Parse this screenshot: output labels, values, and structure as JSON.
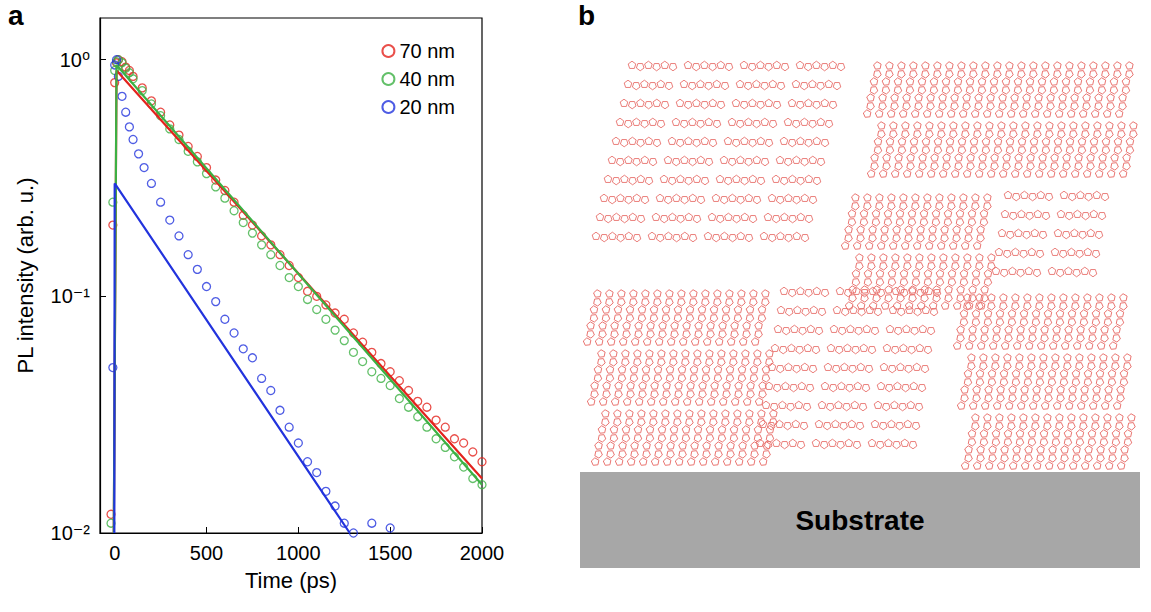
{
  "chart_data": {
    "type": "scatter",
    "panel_label": "a",
    "x_label": "Time (ps)",
    "y_label": "PL intensity (arb. u.)",
    "xlim": [
      -80,
      2000
    ],
    "xticks": [
      0,
      500,
      1000,
      1500,
      2000
    ],
    "ylim": [
      0.01,
      1.5
    ],
    "yticks": [
      {
        "value": 0.01,
        "label": "10⁻²"
      },
      {
        "value": 0.1,
        "label": "10⁻¹"
      },
      {
        "value": 1,
        "label": "10⁰"
      }
    ],
    "log": "y",
    "grid": false,
    "legend": "upper right",
    "series": [
      {
        "name": "70 nm",
        "color": "#e3231d",
        "marker": "circle-open",
        "x": [
          -20,
          -10,
          0,
          10,
          20,
          40,
          60,
          80,
          100,
          150,
          200,
          250,
          300,
          350,
          400,
          450,
          500,
          550,
          600,
          650,
          700,
          750,
          800,
          850,
          900,
          950,
          1000,
          1050,
          1100,
          1150,
          1200,
          1250,
          1300,
          1350,
          1400,
          1450,
          1500,
          1550,
          1600,
          1650,
          1700,
          1750,
          1800,
          1850,
          1900,
          1950,
          2000
        ],
        "values": [
          0.012,
          0.2,
          0.8,
          0.97,
          1.0,
          0.98,
          0.93,
          0.9,
          0.85,
          0.76,
          0.67,
          0.6,
          0.53,
          0.48,
          0.43,
          0.39,
          0.35,
          0.31,
          0.28,
          0.25,
          0.22,
          0.2,
          0.18,
          0.165,
          0.15,
          0.135,
          0.12,
          0.105,
          0.1,
          0.092,
          0.085,
          0.08,
          0.07,
          0.064,
          0.058,
          0.052,
          0.048,
          0.044,
          0.04,
          0.036,
          0.034,
          0.03,
          0.028,
          0.025,
          0.024,
          0.022,
          0.02
        ],
        "fit": {
          "x": [
            -5,
            10,
            2000
          ],
          "values": [
            0.01,
            0.9,
            0.017
          ]
        }
      },
      {
        "name": "40 nm",
        "color": "#3cb043",
        "marker": "circle-open",
        "x": [
          -20,
          -10,
          0,
          10,
          20,
          40,
          60,
          80,
          100,
          150,
          200,
          250,
          300,
          350,
          400,
          450,
          500,
          550,
          600,
          650,
          700,
          750,
          800,
          850,
          900,
          950,
          1000,
          1050,
          1100,
          1150,
          1200,
          1250,
          1300,
          1350,
          1400,
          1450,
          1500,
          1550,
          1600,
          1650,
          1700,
          1750,
          1800,
          1850,
          1900,
          1950,
          2000
        ],
        "values": [
          0.011,
          0.25,
          0.9,
          0.98,
          1.0,
          0.97,
          0.92,
          0.88,
          0.83,
          0.74,
          0.65,
          0.58,
          0.51,
          0.46,
          0.41,
          0.37,
          0.33,
          0.29,
          0.26,
          0.23,
          0.205,
          0.185,
          0.165,
          0.15,
          0.135,
          0.12,
          0.11,
          0.097,
          0.088,
          0.08,
          0.072,
          0.065,
          0.058,
          0.053,
          0.048,
          0.045,
          0.042,
          0.037,
          0.034,
          0.031,
          0.028,
          0.025,
          0.023,
          0.021,
          0.019,
          0.017,
          0.016
        ],
        "fit": {
          "x": [
            -5,
            10,
            2000
          ],
          "values": [
            0.01,
            0.95,
            0.016
          ]
        }
      },
      {
        "name": "20 nm",
        "color": "#2233dd",
        "marker": "circle-open",
        "x": [
          -10,
          0,
          10,
          20,
          40,
          60,
          80,
          100,
          130,
          160,
          200,
          250,
          300,
          350,
          400,
          450,
          500,
          550,
          600,
          650,
          700,
          750,
          800,
          850,
          900,
          950,
          1000,
          1050,
          1100,
          1150,
          1200,
          1250,
          1300,
          1400,
          1500
        ],
        "values": [
          0.05,
          0.95,
          1.0,
          0.85,
          0.7,
          0.6,
          0.52,
          0.46,
          0.4,
          0.35,
          0.3,
          0.25,
          0.21,
          0.18,
          0.15,
          0.13,
          0.11,
          0.095,
          0.08,
          0.07,
          0.06,
          0.055,
          0.045,
          0.04,
          0.033,
          0.028,
          0.024,
          0.02,
          0.018,
          0.015,
          0.013,
          0.011,
          0.01,
          0.011,
          0.0105
        ],
        "fit": {
          "x": [
            -2,
            0,
            1280
          ],
          "values": [
            0.01,
            0.3,
            0.01
          ]
        }
      }
    ]
  },
  "diagram": {
    "panel_label": "b",
    "substrate": "Substrate"
  }
}
